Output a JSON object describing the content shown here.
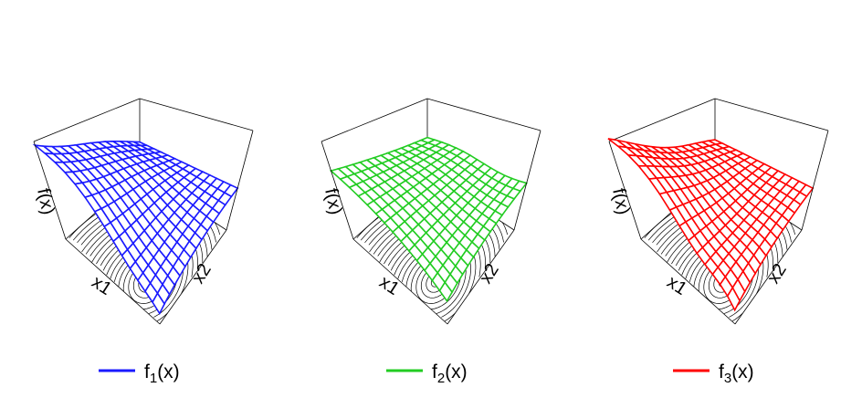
{
  "panels": [
    {
      "x1_label": "x1",
      "x2_label": "x2",
      "z_label": "f(x)",
      "color": "#1a1aff",
      "legend": {
        "base": "f",
        "subscript": "1",
        "rest": "(x)"
      }
    },
    {
      "x1_label": "x1",
      "x2_label": "x2",
      "z_label": "f(x)",
      "color": "#22cc22",
      "legend": {
        "base": "f",
        "subscript": "2",
        "rest": "(x)"
      }
    },
    {
      "x1_label": "x1",
      "x2_label": "x2",
      "z_label": "f(x)",
      "color": "#ff0000",
      "legend": {
        "base": "f",
        "subscript": "3",
        "rest": "(x)"
      }
    }
  ]
}
